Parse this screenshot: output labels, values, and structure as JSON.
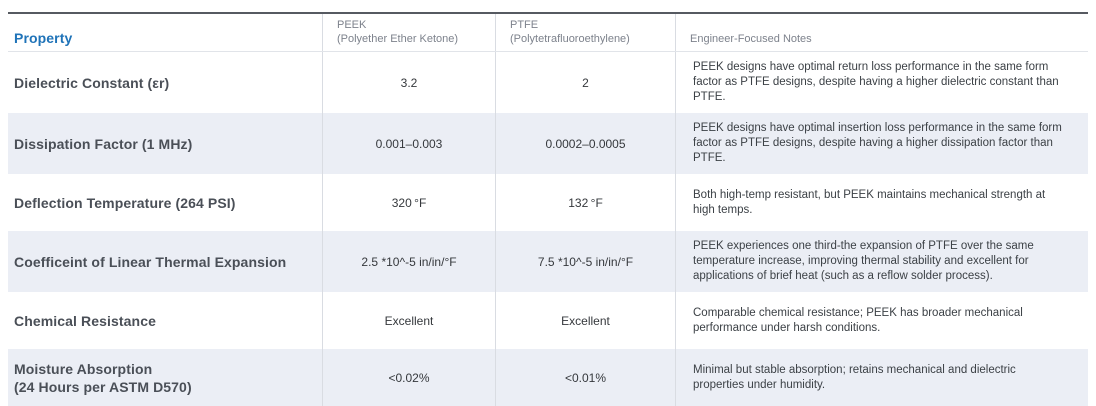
{
  "colors": {
    "accent_blue": "#1f73b8",
    "stripe_background": "#ebeef5",
    "header_gray_text": "#7d828c",
    "top_border": "#565a61",
    "divider": "#d9dce2"
  },
  "chart_data": {
    "type": "table",
    "columns": [
      {
        "label": "Property"
      },
      {
        "label": "PEEK",
        "sublabel": "(Polyether Ether Ketone)"
      },
      {
        "label": "PTFE",
        "sublabel": "(Polytetrafluoroethylene)"
      },
      {
        "label": "Engineer-Focused Notes"
      }
    ],
    "rows": [
      {
        "property": "Dielectric Constant (εr)",
        "peek": "3.2",
        "ptfe": "2",
        "notes": "PEEK designs have optimal return loss performance in the same form factor as PTFE designs, despite having a higher dielectric constant than PTFE."
      },
      {
        "property": "Dissipation Factor (1 MHz)",
        "peek": "0.001–0.003",
        "ptfe": "0.0002–0.0005",
        "notes": "PEEK designs have optimal insertion loss performance in the same form factor as PTFE designs, despite having a higher dissipation factor than PTFE."
      },
      {
        "property": "Deflection Temperature (264 PSI)",
        "peek": "320 °F",
        "ptfe": "132 °F",
        "notes": "Both high-temp resistant, but PEEK maintains mechanical strength at high temps."
      },
      {
        "property": "Coefficeint of Linear Thermal Expansion",
        "peek": "2.5 *10^-5 in/in/°F",
        "ptfe": "7.5 *10^-5 in/in/°F",
        "notes": "PEEK experiences one third-the expansion of PTFE over the same temperature increase, improving thermal stability and excellent for applications of brief heat (such as a reflow solder process)."
      },
      {
        "property": "Chemical Resistance",
        "peek": "Excellent",
        "ptfe": "Excellent",
        "notes": "Comparable chemical resistance; PEEK has broader mechanical performance under harsh conditions."
      },
      {
        "property": "Moisture Absorption\n(24 Hours per ASTM D570)",
        "peek": "<0.02%",
        "ptfe": "<0.01%",
        "notes": "Minimal but stable absorption; retains mechanical and dielectric properties under humidity."
      }
    ]
  }
}
